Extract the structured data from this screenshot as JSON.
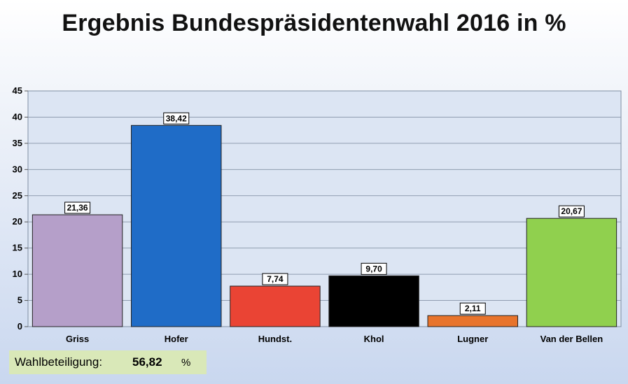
{
  "title": "Ergebnis Bundespräsidentenwahl 2016 in %",
  "chart_data": {
    "type": "bar",
    "title": "Ergebnis Bundespräsidentenwahl 2016 in %",
    "categories": [
      "Griss",
      "Hofer",
      "Hundst.",
      "Khol",
      "Lugner",
      "Van der Bellen"
    ],
    "values": [
      21.36,
      38.42,
      7.74,
      9.7,
      2.11,
      20.67
    ],
    "value_labels": [
      "21,36",
      "38,42",
      "7,74",
      "9,70",
      "2,11",
      "20,67"
    ],
    "colors": [
      "#b59fc9",
      "#1f6cc7",
      "#ea4434",
      "#000000",
      "#e8742c",
      "#90d04e"
    ],
    "ylim": [
      0,
      45
    ],
    "yticks": [
      0,
      5,
      10,
      15,
      20,
      25,
      30,
      35,
      40,
      45
    ],
    "grid": true,
    "xlabel": "",
    "ylabel": ""
  },
  "turnout": {
    "label": "Wahlbeteiligung:",
    "value": "56,82",
    "unit": "%"
  }
}
